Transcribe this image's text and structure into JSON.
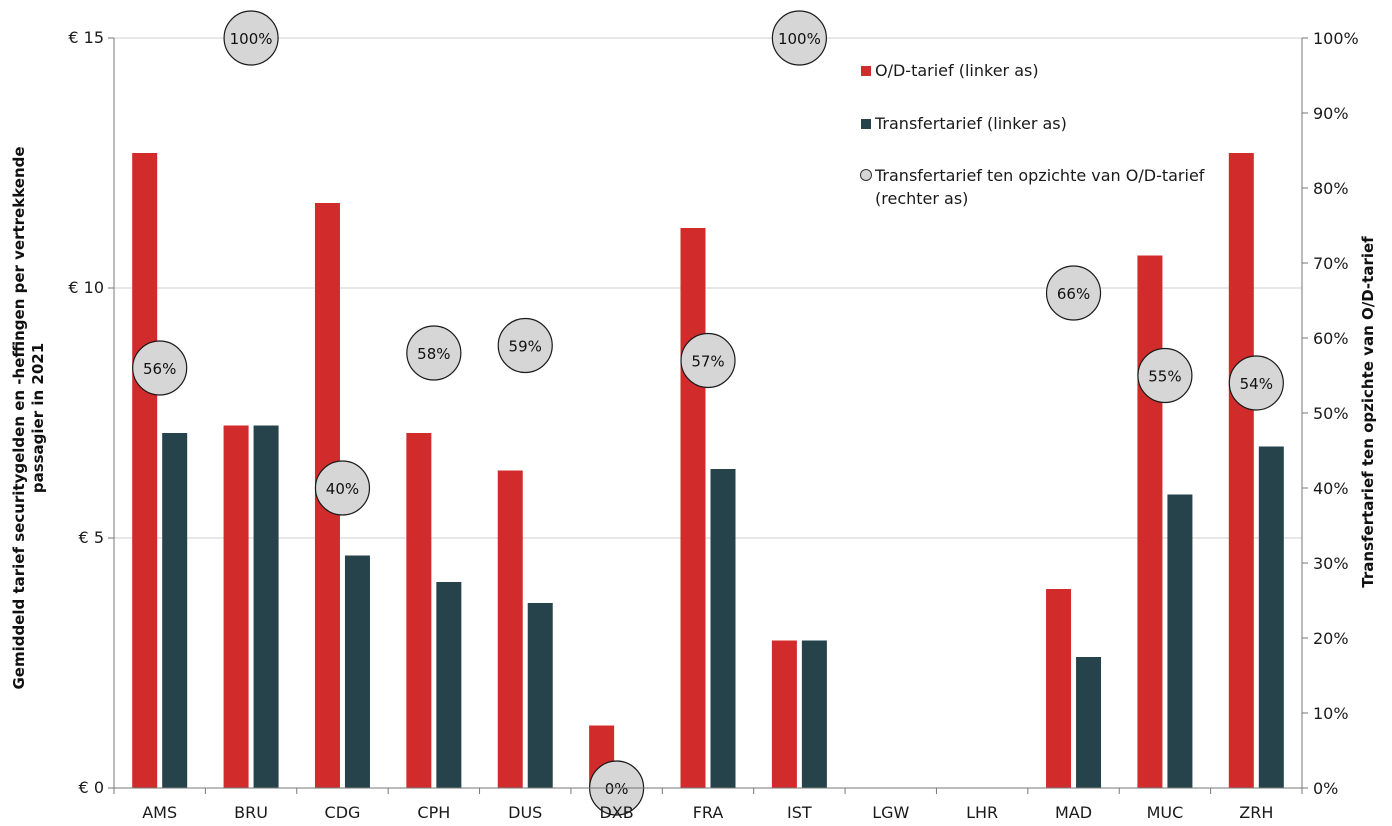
{
  "chart_data": {
    "type": "bar",
    "categories": [
      "AMS",
      "BRU",
      "CDG",
      "CPH",
      "DUS",
      "DXB",
      "FRA",
      "IST",
      "LGW",
      "LHR",
      "MAD",
      "MUC",
      "ZRH"
    ],
    "series": [
      {
        "name": "O/D-tarief (linker as)",
        "axis": "left",
        "color": "#d12b2b",
        "values": [
          12.7,
          7.25,
          11.7,
          7.1,
          6.35,
          1.25,
          11.2,
          2.95,
          null,
          null,
          3.98,
          10.65,
          12.7
        ]
      },
      {
        "name": "Transfertarief (linker as)",
        "axis": "left",
        "color": "#26434b",
        "values": [
          7.1,
          7.25,
          4.65,
          4.12,
          3.7,
          null,
          6.38,
          2.95,
          null,
          null,
          2.62,
          5.87,
          6.83
        ]
      },
      {
        "name": "Transfertarief ten opzichte van O/D-tarief",
        "name_line2": "(rechter as)",
        "axis": "right",
        "type": "scatter",
        "color": "#d6d6d6",
        "values": [
          56,
          100,
          40,
          58,
          59,
          0,
          57,
          100,
          null,
          null,
          66,
          55,
          54
        ],
        "labels": [
          "56%",
          "100%",
          "40%",
          "58%",
          "59%",
          "0%",
          "57%",
          "100%",
          "",
          "",
          "66%",
          "55%",
          "54%"
        ]
      }
    ],
    "ylabel": "Gemiddeld tarief securitygelden en -heffingen per vertrekkende passagier in 2021",
    "ylabel_lines": [
      "Gemiddeld tarief securitygelden en -heffingen per vertrekkende",
      "passagier in 2021"
    ],
    "y2label": "Transfertarief ten opzichte van O/D-tarief",
    "ylim": [
      0,
      15
    ],
    "y2lim": [
      0,
      100
    ],
    "yticks": [
      "€ 0",
      "€ 5",
      "€ 10",
      "€ 15"
    ],
    "y2ticks": [
      "0%",
      "10%",
      "20%",
      "30%",
      "40%",
      "50%",
      "60%",
      "70%",
      "80%",
      "90%",
      "100%"
    ],
    "grid": true,
    "legend_position": "top-right"
  }
}
